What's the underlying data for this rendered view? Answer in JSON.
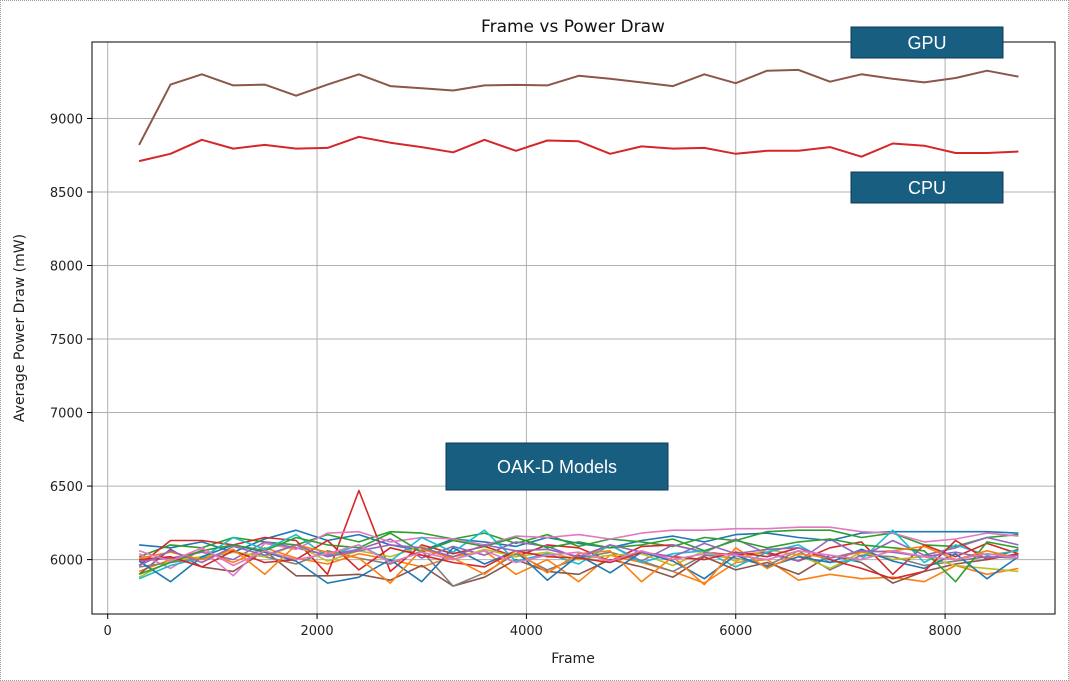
{
  "chart_data": {
    "type": "line",
    "title": "Frame vs Power Draw",
    "xlabel": "Frame",
    "ylabel": "Average Power Draw (mW)",
    "xlim": [
      -150,
      9050
    ],
    "ylim": [
      5630,
      9520
    ],
    "xticks": [
      0,
      2000,
      4000,
      6000,
      8000
    ],
    "yticks": [
      6000,
      6500,
      7000,
      7500,
      8000,
      8500,
      9000
    ],
    "grid": true,
    "x": [
      300,
      600,
      900,
      1200,
      1500,
      1800,
      2100,
      2400,
      2700,
      3000,
      3300,
      3600,
      3900,
      4200,
      4500,
      4800,
      5100,
      5400,
      5700,
      6000,
      6300,
      6600,
      6900,
      7200,
      7500,
      7800,
      8100,
      8400,
      8700
    ],
    "annotations": [
      {
        "text": "GPU",
        "fill": "#175e81"
      },
      {
        "text": "CPU",
        "fill": "#175e81"
      },
      {
        "text": "OAK-D Models",
        "fill": "#175e81"
      }
    ],
    "series": [
      {
        "color": "#8c564b",
        "values": [
          8820,
          9230,
          9300,
          9225,
          9230,
          9155,
          9230,
          9300,
          9220,
          9205,
          9190,
          9225,
          9228,
          9225,
          9290,
          9270,
          9245,
          9220,
          9300,
          9240,
          9325,
          9330,
          9250,
          9300,
          9270,
          9245,
          9275,
          9325,
          9285
        ]
      },
      {
        "color": "#d62728",
        "values": [
          8710,
          8760,
          8855,
          8795,
          8820,
          8795,
          8800,
          8875,
          8835,
          8805,
          8770,
          8855,
          8780,
          8850,
          8845,
          8760,
          8810,
          8795,
          8800,
          8760,
          8780,
          8780,
          8805,
          8740,
          8830,
          8815,
          8765,
          8765,
          8775
        ]
      },
      {
        "color": "#1f77b4",
        "values": [
          6100,
          6080,
          6120,
          6050,
          6140,
          6200,
          6130,
          6170,
          6100,
          6060,
          6140,
          6120,
          6090,
          6150,
          6110,
          6080,
          6130,
          6160,
          6120,
          6170,
          6180,
          6150,
          6130,
          6180,
          6190,
          6190,
          6190,
          6190,
          6180
        ]
      },
      {
        "color": "#ff7f0e",
        "values": [
          5920,
          6000,
          6060,
          5980,
          6080,
          6010,
          5970,
          6040,
          6000,
          5950,
          6020,
          6060,
          5900,
          6000,
          5850,
          6030,
          5980,
          5920,
          5840,
          5980,
          6000,
          5860,
          5900,
          5870,
          5880,
          5850,
          5960,
          5900,
          5940
        ]
      },
      {
        "color": "#2ca02c",
        "values": [
          6020,
          6100,
          6080,
          6150,
          6120,
          6100,
          6170,
          6120,
          6190,
          6180,
          6140,
          6180,
          6110,
          6170,
          6090,
          6140,
          6120,
          6090,
          6150,
          6130,
          6190,
          6200,
          6200,
          6150,
          6180,
          6100,
          6090,
          6150,
          6170
        ]
      },
      {
        "color": "#d62728",
        "values": [
          5960,
          6130,
          6130,
          6100,
          6150,
          6130,
          5900,
          6470,
          5920,
          6100,
          6040,
          6090,
          6020,
          6100,
          6080,
          5990,
          6090,
          6100,
          6050,
          6030,
          6050,
          5990,
          6080,
          6120,
          5900,
          6100,
          6020,
          6110,
          6040
        ]
      },
      {
        "color": "#9467bd",
        "values": [
          5990,
          6010,
          6050,
          6000,
          6120,
          6080,
          6030,
          6070,
          6140,
          6010,
          6090,
          6030,
          6120,
          6090,
          6010,
          6100,
          5990,
          6100,
          6050,
          6140,
          6040,
          5990,
          6140,
          6020,
          6130,
          6030,
          6080,
          6150,
          6100
        ]
      },
      {
        "color": "#8c564b",
        "values": [
          5900,
          6070,
          5950,
          5920,
          6060,
          5890,
          5890,
          5900,
          5860,
          5960,
          5820,
          5880,
          6000,
          5920,
          5900,
          6000,
          5950,
          5880,
          6020,
          5930,
          5980,
          5900,
          6030,
          5980,
          5840,
          5920,
          5970,
          6000,
          6070
        ]
      },
      {
        "color": "#e377c2",
        "values": [
          6040,
          5940,
          6070,
          5890,
          6110,
          6070,
          6180,
          6190,
          6120,
          6150,
          6140,
          6100,
          6160,
          6150,
          6170,
          6140,
          6180,
          6200,
          6200,
          6210,
          6210,
          6220,
          6220,
          6190,
          6180,
          6120,
          6140,
          6180,
          6160
        ]
      },
      {
        "color": "#7f7f7f",
        "values": [
          5950,
          5980,
          6010,
          6050,
          6020,
          5970,
          6060,
          6010,
          5970,
          6060,
          5820,
          5910,
          6040,
          5930,
          6010,
          6050,
          5990,
          5920,
          6030,
          6010,
          5960,
          6060,
          5930,
          6030,
          6020,
          5960,
          5990,
          6020,
          6010
        ]
      },
      {
        "color": "#bcbd22",
        "values": [
          5880,
          5990,
          6020,
          6050,
          6020,
          6100,
          5990,
          6060,
          6020,
          6090,
          6000,
          6070,
          6020,
          6050,
          6000,
          6030,
          6040,
          5960,
          6060,
          5990,
          6070,
          6030,
          5940,
          6050,
          6000,
          6020,
          5960,
          5940,
          5920
        ]
      },
      {
        "color": "#17becf",
        "values": [
          5870,
          5960,
          6010,
          6150,
          6070,
          6170,
          6020,
          6100,
          5990,
          6150,
          6050,
          6200,
          5990,
          6040,
          5970,
          6100,
          5980,
          6040,
          6060,
          5950,
          6050,
          6100,
          5980,
          6000,
          6200,
          5980,
          6100,
          6030,
          6060
        ]
      },
      {
        "color": "#1f77b4",
        "values": [
          5990,
          5850,
          6020,
          6100,
          6050,
          5990,
          5840,
          5880,
          6000,
          5850,
          6080,
          5970,
          6060,
          5860,
          6030,
          5910,
          6050,
          5990,
          5870,
          6030,
          5950,
          6020,
          5980,
          6070,
          5990,
          5940,
          6040,
          5870,
          6020
        ]
      },
      {
        "color": "#2ca02c",
        "values": [
          5900,
          5980,
          6060,
          6100,
          6060,
          6150,
          6100,
          6080,
          6180,
          6050,
          6130,
          6090,
          6150,
          6080,
          6120,
          6080,
          6100,
          6140,
          6060,
          6130,
          6080,
          6120,
          6140,
          6100,
          6080,
          6060,
          5850,
          6120,
          6080
        ]
      },
      {
        "color": "#d62728",
        "values": [
          6000,
          6020,
          5950,
          6060,
          5980,
          6000,
          6130,
          5930,
          6080,
          6030,
          5980,
          5950,
          6060,
          6020,
          6010,
          5980,
          6050,
          6020,
          6000,
          6050,
          6020,
          6080,
          6000,
          5940,
          5870,
          5920,
          6130,
          6000,
          6040
        ]
      },
      {
        "color": "#ff7f0e",
        "values": [
          6010,
          6050,
          6000,
          6070,
          5900,
          6100,
          6050,
          6010,
          5840,
          6070,
          6010,
          5900,
          6060,
          5910,
          6040,
          6060,
          5850,
          6020,
          5830,
          6080,
          5940,
          6040,
          6010,
          6050,
          6060,
          6090,
          6000,
          6060,
          6010
        ]
      },
      {
        "color": "#9467bd",
        "values": [
          5960,
          6060,
          5980,
          6090,
          6030,
          6100,
          6020,
          6060,
          6100,
          6080,
          6020,
          6100,
          6060,
          6070,
          6020,
          6100,
          6050,
          6020,
          6110,
          6040,
          6070,
          6080,
          6010,
          6060,
          6050,
          6020,
          6050,
          6010,
          6030
        ]
      },
      {
        "color": "#e377c2",
        "values": [
          6060,
          5990,
          6080,
          5960,
          6060,
          6000,
          6040,
          6100,
          5980,
          6050,
          6000,
          6060,
          5980,
          6030,
          6050,
          5990,
          6060,
          6000,
          6040,
          6030,
          6000,
          6060,
          6030,
          6000,
          6060,
          6020,
          6000,
          6040,
          6010
        ]
      }
    ]
  }
}
